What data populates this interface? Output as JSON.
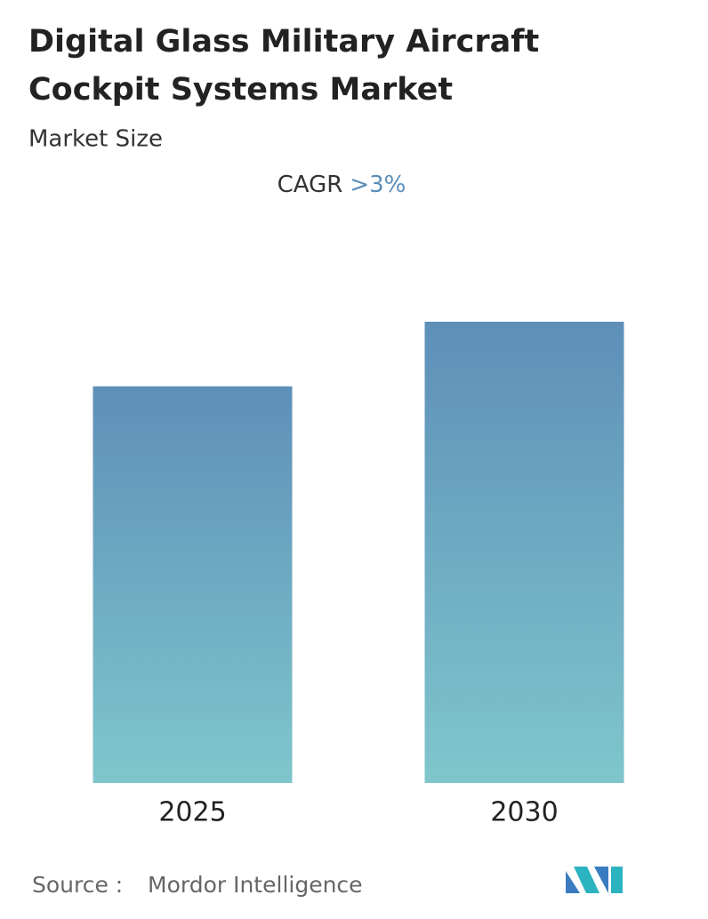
{
  "chart_data": {
    "type": "bar",
    "title": [
      "Digital Glass Military Aircraft",
      "Cockpit Systems Market"
    ],
    "subtitle": "Market Size",
    "cagr_label": "CAGR",
    "cagr_value": ">3%",
    "categories": [
      "2025",
      "2030"
    ],
    "values": [
      86,
      100
    ],
    "ylim": [
      0,
      100
    ],
    "gradient": [
      "#5e8fb8",
      "#7fc6cc"
    ],
    "source_label": "Source :",
    "source": "Mordor Intelligence"
  }
}
